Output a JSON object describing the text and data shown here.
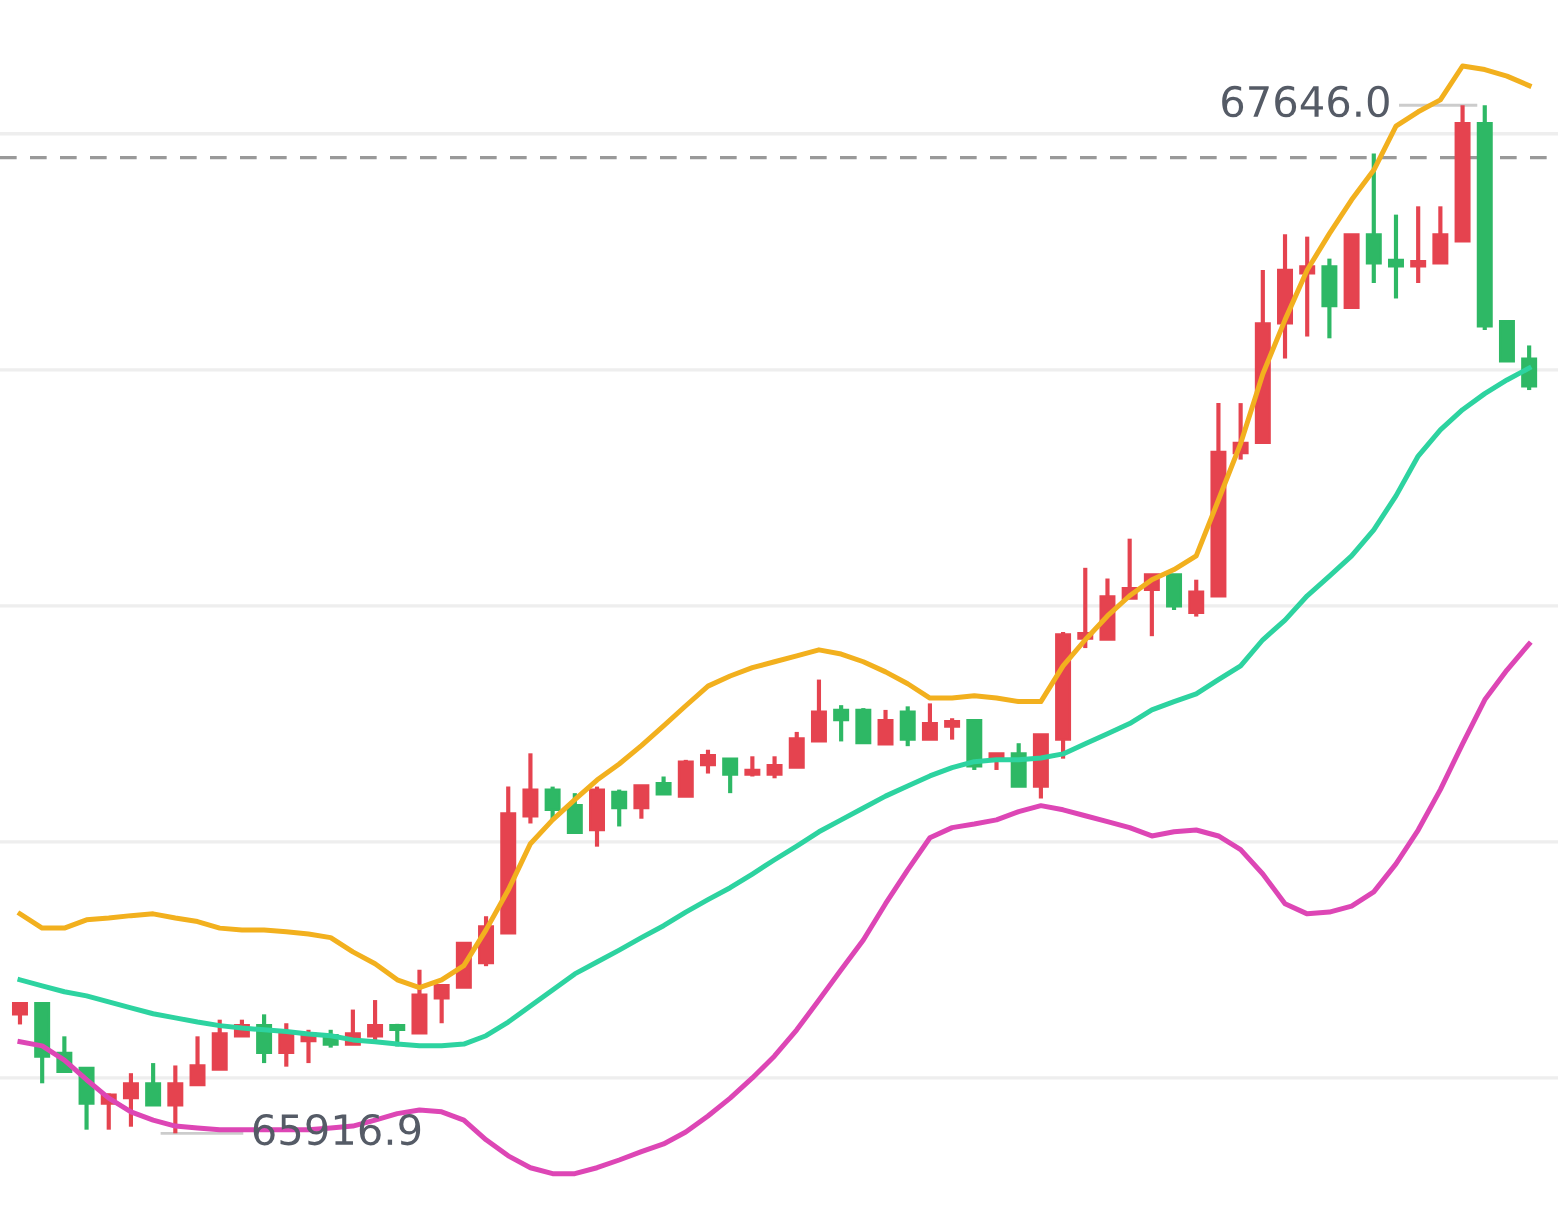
{
  "chart_data": {
    "type": "candlestick",
    "categories": [
      null,
      null,
      null,
      null,
      null,
      null,
      null,
      null,
      null,
      null,
      null,
      null,
      null,
      null,
      null,
      null,
      null,
      null,
      null,
      null,
      null,
      null,
      null,
      null,
      null,
      null,
      null,
      null,
      null,
      null,
      null,
      null,
      null,
      null,
      null,
      null,
      null,
      null,
      null,
      null,
      null,
      null,
      null,
      null,
      null,
      null,
      null,
      null,
      null,
      null,
      null,
      null,
      null,
      null,
      null,
      null,
      null,
      null,
      null,
      null,
      null,
      null,
      null,
      null,
      null,
      null,
      null,
      null,
      null
    ],
    "ohlc": [
      [
        66117,
        66136,
        66100,
        66136
      ],
      [
        66136,
        66136,
        66001,
        66046
      ],
      [
        66052,
        66080,
        66020,
        66020
      ],
      [
        66027,
        66027,
        65923,
        65967
      ],
      [
        65967,
        65984,
        65923,
        65982
      ],
      [
        65976,
        66018,
        65928,
        66001
      ],
      [
        66001,
        66035,
        65964,
        65964
      ],
      [
        65964,
        66031,
        65916.9,
        66001
      ],
      [
        65998,
        66080,
        65998,
        66031
      ],
      [
        66024,
        66108,
        66024,
        66085
      ],
      [
        66080,
        66108,
        66080,
        66099
      ],
      [
        66099,
        66117,
        66035,
        66052
      ],
      [
        66052,
        66102,
        66029,
        66085
      ],
      [
        66072,
        66091,
        66035,
        66085
      ],
      [
        66082,
        66091,
        66061,
        66066
      ],
      [
        66066,
        66125,
        66066,
        66085
      ],
      [
        66080,
        66141,
        66072,
        66099
      ],
      [
        66099,
        66101,
        66063,
        66091
      ],
      [
        66085,
        66192,
        66085,
        66150
      ],
      [
        66144,
        66166,
        66102,
        66166
      ],
      [
        66162,
        66237,
        66162,
        66237
      ],
      [
        66203,
        66282,
        66198,
        66265
      ],
      [
        66253,
        66500,
        66253,
        66455
      ],
      [
        66450,
        66556,
        66438,
        66495
      ],
      [
        66495,
        66500,
        66444,
        66461
      ],
      [
        66469,
        66489,
        66422,
        66422
      ],
      [
        66427,
        66500,
        66399,
        66495
      ],
      [
        66491,
        66495,
        66433,
        66464
      ],
      [
        66464,
        66502,
        66446,
        66502
      ],
      [
        66506,
        66517,
        66487,
        66487
      ],
      [
        66483,
        66545,
        66483,
        66542
      ],
      [
        66536,
        66562,
        66522,
        66553
      ],
      [
        66547,
        66547,
        66489,
        66520
      ],
      [
        66520,
        66551,
        66517,
        66528
      ],
      [
        66520,
        66551,
        66514,
        66536
      ],
      [
        66532,
        66592,
        66532,
        66581
      ],
      [
        66576,
        66680,
        66576,
        66626
      ],
      [
        66629,
        66637,
        66576,
        66612
      ],
      [
        66629,
        66632,
        66573,
        66573
      ],
      [
        66571,
        66629,
        66571,
        66612
      ],
      [
        66626,
        66635,
        66568,
        66579
      ],
      [
        66579,
        66640,
        66579,
        66607
      ],
      [
        66601,
        66615,
        66579,
        66610
      ],
      [
        66612,
        66612,
        66528,
        66534
      ],
      [
        66545,
        66556,
        66528,
        66556
      ],
      [
        66556,
        66573,
        66500,
        66500
      ],
      [
        66500,
        66588,
        66480,
        66588
      ],
      [
        66579,
        66760,
        66547,
        66756
      ],
      [
        66749,
        66868,
        66733,
        66758
      ],
      [
        66747,
        66850,
        66747,
        66820
      ],
      [
        66816,
        66917,
        66816,
        66834
      ],
      [
        66831,
        66857,
        66753,
        66857
      ],
      [
        66857,
        66857,
        66797,
        66803
      ],
      [
        66792,
        66848,
        66786,
        66828
      ],
      [
        66820,
        67145,
        66820,
        67063
      ],
      [
        67061,
        67145,
        67050,
        67078
      ],
      [
        67078,
        67369,
        67078,
        67279
      ],
      [
        67279,
        67429,
        67220,
        67369
      ],
      [
        67363,
        67425,
        67257,
        67375
      ],
      [
        67375,
        67388,
        67254,
        67308
      ],
      [
        67305,
        67429,
        67305,
        67429
      ],
      [
        67429,
        67565,
        67347,
        67380
      ],
      [
        67386,
        67462,
        67321,
        67375
      ],
      [
        67375,
        67476,
        67347,
        67384
      ],
      [
        67380,
        67476,
        67380,
        67429
      ],
      [
        67417,
        67646,
        67417,
        67616
      ],
      [
        67616,
        67646,
        67268,
        67274
      ],
      [
        67283,
        67283,
        67215,
        67215
      ],
      [
        67220,
        67242,
        67167,
        67173
      ]
    ],
    "colors": [
      "#e5434f",
      "#2eb865",
      "#2eb865",
      "#2eb865",
      "#e5434f",
      "#e5434f",
      "#2eb865",
      "#e5434f",
      "#e5434f",
      "#e5434f",
      "#e5434f",
      "#2eb865",
      "#e5434f",
      "#e5434f",
      "#2eb865",
      "#e5434f",
      "#e5434f",
      "#2eb865",
      "#e5434f",
      "#e5434f",
      "#e5434f",
      "#e5434f",
      "#e5434f",
      "#e5434f",
      "#2eb865",
      "#2eb865",
      "#e5434f",
      "#2eb865",
      "#e5434f",
      "#2eb865",
      "#e5434f",
      "#e5434f",
      "#2eb865",
      "#e5434f",
      "#e5434f",
      "#e5434f",
      "#e5434f",
      "#2eb865",
      "#2eb865",
      "#e5434f",
      "#2eb865",
      "#e5434f",
      "#e5434f",
      "#2eb865",
      "#e5434f",
      "#2eb865",
      "#e5434f",
      "#e5434f",
      "#e5434f",
      "#e5434f",
      "#e5434f",
      "#e5434f",
      "#2eb865",
      "#e5434f",
      "#e5434f",
      "#e5434f",
      "#e5434f",
      "#e5434f",
      "#e5434f",
      "#2eb865",
      "#e5434f",
      "#2eb865",
      "#2eb865",
      "#e5434f",
      "#e5434f",
      "#e5434f",
      "#2eb865",
      "#2eb865",
      "#2eb865"
    ],
    "series": [
      {
        "type": "line",
        "color": "#f2b01e",
        "values": [
          66286,
          66262,
          66262,
          66276,
          66279,
          66283,
          66286,
          66279,
          66273,
          66262,
          66259,
          66259,
          66256,
          66252,
          66246,
          66222,
          66202,
          66175,
          66162,
          66175,
          66199,
          66259,
          66326,
          66404,
          66444,
          66478,
          66511,
          66538,
          66569,
          66602,
          66636,
          66669,
          66686,
          66700,
          66710,
          66720,
          66730,
          66723,
          66710,
          66693,
          66673,
          66649,
          66649,
          66653,
          66649,
          66643,
          66643,
          66703,
          66747,
          66787,
          66821,
          66848,
          66865,
          66888,
          66982,
          67077,
          67194,
          67285,
          67369,
          67430,
          67487,
          67537,
          67611,
          67635,
          67655,
          67712,
          67706,
          67695,
          67679
        ]
      },
      {
        "type": "line",
        "color": "#2dd3a0",
        "values": [
          66175,
          66165,
          66155,
          66148,
          66138,
          66128,
          66118,
          66111,
          66104,
          66098,
          66094,
          66091,
          66088,
          66084,
          66081,
          66074,
          66071,
          66067,
          66064,
          66064,
          66067,
          66081,
          66104,
          66131,
          66158,
          66185,
          66205,
          66225,
          66246,
          66266,
          66289,
          66310,
          66330,
          66353,
          66377,
          66400,
          66424,
          66444,
          66464,
          66484,
          66501,
          66518,
          66532,
          66542,
          66545,
          66545,
          66548,
          66555,
          66572,
          66589,
          66606,
          66629,
          66643,
          66656,
          66680,
          66703,
          66747,
          66780,
          66821,
          66854,
          66888,
          66932,
          66989,
          67056,
          67100,
          67134,
          67161,
          67184,
          67204
        ]
      },
      {
        "type": "line",
        "color": "#dd46b5",
        "values": [
          66071,
          66064,
          66040,
          66007,
          65976,
          65953,
          65939,
          65929,
          65926,
          65923,
          65923,
          65923,
          65923,
          65923,
          65926,
          65929,
          65939,
          65950,
          65956,
          65953,
          65939,
          65906,
          65879,
          65859,
          65849,
          65849,
          65859,
          65872,
          65886,
          65899,
          65919,
          65946,
          65976,
          66010,
          66047,
          66091,
          66141,
          66192,
          66242,
          66303,
          66360,
          66414,
          66431,
          66437,
          66444,
          66458,
          66468,
          66461,
          66451,
          66441,
          66431,
          66417,
          66424,
          66427,
          66417,
          66394,
          66353,
          66303,
          66286,
          66289,
          66299,
          66323,
          66370,
          66427,
          66495,
          66572,
          66646,
          66696,
          66740
        ]
      }
    ],
    "ylim": [
      65761,
      67823
    ],
    "yticks": [
      {
        "value": 66010,
        "label": null
      },
      {
        "value": 66407,
        "label": null
      },
      {
        "value": 66804,
        "label": null
      },
      {
        "value": 67201,
        "label": null
      },
      {
        "value": 67598,
        "label": null
      }
    ],
    "grid": "y",
    "ref_lines": [
      {
        "axis": "y",
        "value": 67558,
        "color": "#999999",
        "line_style": "dashed"
      }
    ],
    "annotations": [
      "67646.0",
      "65916.9"
    ]
  }
}
